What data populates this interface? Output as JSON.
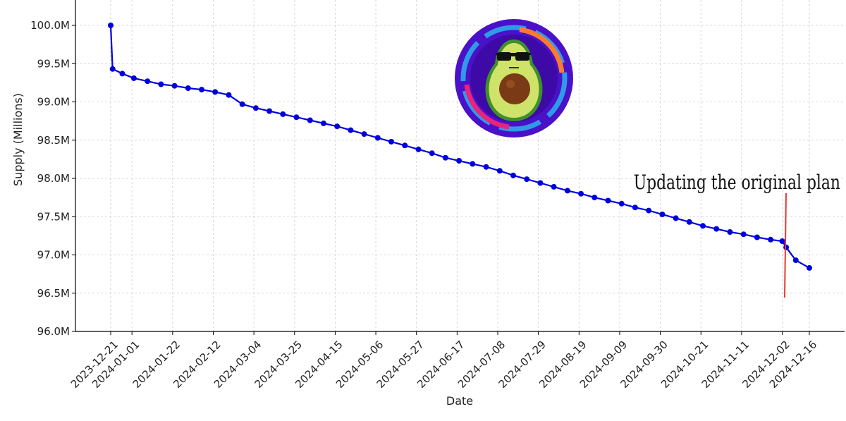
{
  "chart_data": {
    "type": "line",
    "xlabel": "Date",
    "ylabel": "Supply (Millions)",
    "ylim": [
      96.0,
      100.2
    ],
    "grid": true,
    "y_ticks": [
      "96.0M",
      "96.5M",
      "97.0M",
      "97.5M",
      "98.0M",
      "98.5M",
      "99.0M",
      "99.5M",
      "100.0M"
    ],
    "y_tick_values": [
      96.0,
      96.5,
      97.0,
      97.5,
      98.0,
      98.5,
      99.0,
      99.5,
      100.0
    ],
    "x_ticks": [
      "2023-12-21",
      "2024-01-01",
      "2024-01-22",
      "2024-02-12",
      "2024-03-04",
      "2024-03-25",
      "2024-04-15",
      "2024-05-06",
      "2024-05-27",
      "2024-06-17",
      "2024-07-08",
      "2024-07-29",
      "2024-08-19",
      "2024-09-09",
      "2024-09-30",
      "2024-10-21",
      "2024-11-11",
      "2024-12-02",
      "2024-12-16"
    ],
    "series": [
      {
        "color": "#0000dd",
        "x": [
          "2023-12-21",
          "2023-12-22",
          "2023-12-27",
          "2024-01-02",
          "2024-01-09",
          "2024-01-16",
          "2024-01-23",
          "2024-01-30",
          "2024-02-06",
          "2024-02-13",
          "2024-02-20",
          "2024-02-27",
          "2024-03-05",
          "2024-03-12",
          "2024-03-19",
          "2024-03-26",
          "2024-04-02",
          "2024-04-09",
          "2024-04-16",
          "2024-04-23",
          "2024-04-30",
          "2024-05-07",
          "2024-05-14",
          "2024-05-21",
          "2024-05-28",
          "2024-06-04",
          "2024-06-11",
          "2024-06-18",
          "2024-06-25",
          "2024-07-02",
          "2024-07-09",
          "2024-07-16",
          "2024-07-23",
          "2024-07-30",
          "2024-08-06",
          "2024-08-13",
          "2024-08-20",
          "2024-08-27",
          "2024-09-03",
          "2024-09-10",
          "2024-09-17",
          "2024-09-24",
          "2024-10-01",
          "2024-10-08",
          "2024-10-15",
          "2024-10-22",
          "2024-10-29",
          "2024-11-05",
          "2024-11-12",
          "2024-11-19",
          "2024-11-26",
          "2024-12-02",
          "2024-12-04",
          "2024-12-09",
          "2024-12-16"
        ],
        "values": [
          100.0,
          99.43,
          99.37,
          99.31,
          99.27,
          99.23,
          99.21,
          99.18,
          99.16,
          99.13,
          99.09,
          98.97,
          98.92,
          98.88,
          98.84,
          98.8,
          98.76,
          98.72,
          98.68,
          98.63,
          98.58,
          98.53,
          98.48,
          98.43,
          98.38,
          98.33,
          98.27,
          98.23,
          98.19,
          98.15,
          98.1,
          98.04,
          97.99,
          97.94,
          97.89,
          97.84,
          97.8,
          97.75,
          97.71,
          97.67,
          97.62,
          97.58,
          97.53,
          97.48,
          97.43,
          97.38,
          97.34,
          97.3,
          97.27,
          97.23,
          97.2,
          97.18,
          97.1,
          96.93,
          96.83
        ]
      }
    ],
    "annotations": [
      {
        "text": "Updating the original plan",
        "color": "#111111",
        "line_color": "#e53935"
      }
    ]
  },
  "logo": {
    "name": "avocado-sunglasses-logo",
    "bg_color": "#4a11c8"
  }
}
